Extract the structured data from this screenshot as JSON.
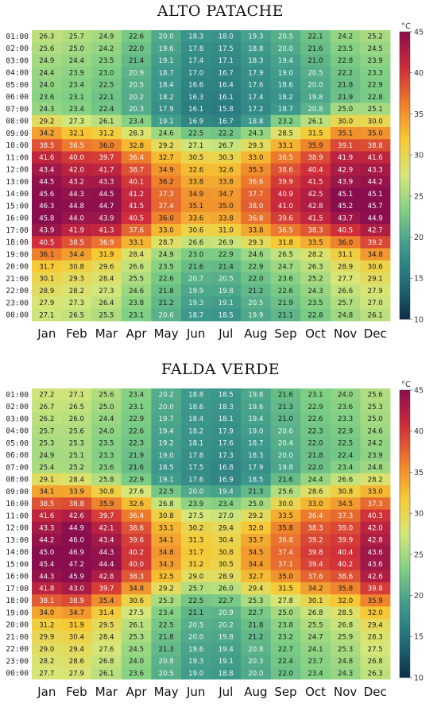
{
  "colors": {
    "scale_stops": [
      "#0b2f4a",
      "#1f6d7a",
      "#3d9a8c",
      "#7fcf85",
      "#d5e77a",
      "#f7c934",
      "#ee7e2c",
      "#cf2c3a",
      "#8a0e4e"
    ]
  },
  "chart_data": [
    {
      "type": "heatmap",
      "title": "ALTO PATACHE",
      "x": [
        "Jan",
        "Feb",
        "Mar",
        "Apr",
        "May",
        "Jun",
        "Jul",
        "Aug",
        "Sep",
        "Oct",
        "Nov",
        "Dec"
      ],
      "y": [
        "01:00",
        "02:00",
        "03:00",
        "04:00",
        "05:00",
        "06:00",
        "07:00",
        "08:00",
        "09:00",
        "10:00",
        "11:00",
        "12:00",
        "13:00",
        "14:00",
        "15:00",
        "16:00",
        "17:00",
        "18:00",
        "19:00",
        "20:00",
        "21:00",
        "22:00",
        "23:00",
        "00:00"
      ],
      "values": [
        [
          26.3,
          25.7,
          24.9,
          22.6,
          20.0,
          18.3,
          18.0,
          19.3,
          20.5,
          22.1,
          24.2,
          25.2
        ],
        [
          25.6,
          25.0,
          24.2,
          22.0,
          19.6,
          17.8,
          17.5,
          18.8,
          20.0,
          21.6,
          23.5,
          24.5
        ],
        [
          24.9,
          24.4,
          23.5,
          21.4,
          19.1,
          17.4,
          17.1,
          18.3,
          19.4,
          21.0,
          22.8,
          23.9
        ],
        [
          24.4,
          23.9,
          23.0,
          20.9,
          18.7,
          17.0,
          16.7,
          17.9,
          19.0,
          20.5,
          22.2,
          23.3
        ],
        [
          24.0,
          23.4,
          22.5,
          20.5,
          18.4,
          16.6,
          16.4,
          17.6,
          18.6,
          20.0,
          21.8,
          22.9
        ],
        [
          23.6,
          23.1,
          22.1,
          20.2,
          18.2,
          16.3,
          16.1,
          17.4,
          18.2,
          19.8,
          21.9,
          22.8
        ],
        [
          24.3,
          23.4,
          22.4,
          20.3,
          17.9,
          16.1,
          15.8,
          17.2,
          18.7,
          20.8,
          25.0,
          25.1
        ],
        [
          29.2,
          27.3,
          26.1,
          23.4,
          19.1,
          16.9,
          16.7,
          18.8,
          23.2,
          26.1,
          30.0,
          30.0
        ],
        [
          34.2,
          32.1,
          31.2,
          28.3,
          24.6,
          22.5,
          22.2,
          24.3,
          28.5,
          31.5,
          35.1,
          35.0
        ],
        [
          38.5,
          36.5,
          36.0,
          32.8,
          29.2,
          27.1,
          26.7,
          29.3,
          33.1,
          35.9,
          39.1,
          38.8
        ],
        [
          41.6,
          40.0,
          39.7,
          36.4,
          32.7,
          30.5,
          30.3,
          33.0,
          36.5,
          38.9,
          41.9,
          41.6
        ],
        [
          43.4,
          42.0,
          41.7,
          38.7,
          34.9,
          32.6,
          32.6,
          35.3,
          38.6,
          40.4,
          42.9,
          43.3
        ],
        [
          44.5,
          43.2,
          43.3,
          40.1,
          36.2,
          33.8,
          33.8,
          36.6,
          39.9,
          41.5,
          43.9,
          44.2
        ],
        [
          45.6,
          44.3,
          44.5,
          41.2,
          37.3,
          34.9,
          34.7,
          37.7,
          40.9,
          42.5,
          45.1,
          45.1
        ],
        [
          46.3,
          44.8,
          44.7,
          41.5,
          37.4,
          35.1,
          35.0,
          38.0,
          41.0,
          42.8,
          45.2,
          45.7
        ],
        [
          45.8,
          44.0,
          43.9,
          40.5,
          36.0,
          33.6,
          33.8,
          36.8,
          39.6,
          41.5,
          43.7,
          44.9
        ],
        [
          43.9,
          41.9,
          41.3,
          37.6,
          33.0,
          30.6,
          31.0,
          33.8,
          36.5,
          38.3,
          40.5,
          42.7
        ],
        [
          40.5,
          38.5,
          36.9,
          33.1,
          28.7,
          26.6,
          26.9,
          29.3,
          31.8,
          33.5,
          36.0,
          39.2
        ],
        [
          36.1,
          34.4,
          31.9,
          28.4,
          24.9,
          23.0,
          22.9,
          24.6,
          26.5,
          28.2,
          31.1,
          34.8
        ],
        [
          31.7,
          30.8,
          29.6,
          26.6,
          23.5,
          21.6,
          21.4,
          22.9,
          24.7,
          26.3,
          28.9,
          30.6
        ],
        [
          30.1,
          29.3,
          28.4,
          25.5,
          22.6,
          20.7,
          20.5,
          22.0,
          23.6,
          25.2,
          27.7,
          29.1
        ],
        [
          28.9,
          28.2,
          27.3,
          24.6,
          21.8,
          19.9,
          19.8,
          21.2,
          22.6,
          24.3,
          26.6,
          27.9
        ],
        [
          27.9,
          27.3,
          26.4,
          23.8,
          21.2,
          19.3,
          19.1,
          20.5,
          21.9,
          23.5,
          25.7,
          27.0
        ],
        [
          27.1,
          26.5,
          25.5,
          23.1,
          20.6,
          18.7,
          18.5,
          19.9,
          21.1,
          22.8,
          24.8,
          26.1
        ]
      ],
      "colorbar": {
        "label": "°C",
        "min": 10,
        "max": 45,
        "ticks": [
          10,
          15,
          20,
          25,
          30,
          35,
          40,
          45
        ]
      }
    },
    {
      "type": "heatmap",
      "title": "FALDA VERDE",
      "x": [
        "Jan",
        "Feb",
        "Mar",
        "Apr",
        "May",
        "Jun",
        "Jul",
        "Aug",
        "Sep",
        "Oct",
        "Nov",
        "Dec"
      ],
      "y": [
        "01:00",
        "02:00",
        "03:00",
        "04:00",
        "05:00",
        "06:00",
        "07:00",
        "08:00",
        "09:00",
        "10:00",
        "11:00",
        "12:00",
        "13:00",
        "14:00",
        "15:00",
        "16:00",
        "17:00",
        "18:00",
        "19:00",
        "20:00",
        "21:00",
        "22:00",
        "23:00",
        "00:00"
      ],
      "values": [
        [
          27.2,
          27.1,
          25.6,
          23.4,
          20.2,
          18.8,
          18.5,
          19.8,
          21.6,
          23.1,
          24.0,
          25.6
        ],
        [
          26.7,
          26.5,
          25.0,
          23.1,
          20.0,
          18.6,
          18.3,
          19.6,
          21.3,
          22.9,
          23.6,
          25.3
        ],
        [
          26.2,
          26.0,
          24.4,
          22.9,
          19.7,
          18.4,
          18.1,
          19.4,
          21.0,
          22.6,
          23.3,
          25.0
        ],
        [
          25.7,
          25.6,
          24.0,
          22.6,
          19.4,
          18.2,
          17.9,
          19.0,
          20.6,
          22.3,
          22.9,
          24.6
        ],
        [
          25.3,
          25.3,
          23.5,
          22.3,
          19.2,
          18.1,
          17.6,
          18.7,
          20.4,
          22.0,
          22.5,
          24.2
        ],
        [
          24.9,
          25.1,
          23.3,
          21.9,
          19.0,
          17.8,
          17.3,
          18.3,
          20.0,
          21.8,
          22.4,
          23.9
        ],
        [
          25.4,
          25.2,
          23.6,
          21.6,
          18.5,
          17.5,
          16.8,
          17.9,
          19.8,
          22.0,
          23.4,
          24.8
        ],
        [
          29.1,
          28.4,
          25.8,
          22.9,
          19.1,
          17.6,
          16.9,
          18.5,
          21.6,
          24.4,
          26.6,
          28.2
        ],
        [
          34.1,
          33.9,
          30.8,
          27.6,
          22.5,
          20.0,
          19.4,
          21.3,
          25.6,
          28.6,
          30.8,
          33.0
        ],
        [
          38.5,
          38.8,
          35.9,
          32.6,
          26.8,
          23.9,
          23.4,
          25.0,
          30.0,
          33.0,
          34.5,
          37.3
        ],
        [
          41.6,
          42.6,
          39.7,
          36.4,
          30.8,
          27.5,
          27.0,
          29.2,
          33.5,
          36.4,
          37.3,
          40.3
        ],
        [
          43.3,
          44.9,
          42.1,
          38.6,
          33.1,
          30.2,
          29.4,
          32.0,
          35.8,
          38.3,
          39.0,
          42.0
        ],
        [
          44.2,
          46.0,
          43.4,
          39.6,
          34.1,
          31.3,
          30.4,
          33.7,
          36.8,
          39.2,
          39.9,
          42.8
        ],
        [
          45.0,
          46.9,
          44.3,
          40.2,
          34.8,
          31.7,
          30.8,
          34.5,
          37.4,
          39.8,
          40.4,
          43.6
        ],
        [
          45.4,
          47.2,
          44.4,
          40.0,
          34.3,
          31.2,
          30.5,
          34.4,
          37.1,
          39.4,
          40.2,
          43.6
        ],
        [
          44.3,
          45.9,
          42.8,
          38.3,
          32.5,
          29.0,
          28.9,
          32.7,
          35.0,
          37.6,
          38.6,
          42.6
        ],
        [
          41.8,
          43.0,
          39.7,
          34.8,
          29.2,
          25.7,
          26.0,
          29.4,
          31.5,
          34.2,
          35.8,
          39.8
        ],
        [
          38.1,
          38.9,
          35.4,
          30.6,
          25.3,
          22.5,
          22.7,
          25.3,
          27.8,
          30.1,
          32.0,
          35.9
        ],
        [
          34.0,
          34.7,
          31.4,
          27.5,
          23.4,
          21.1,
          20.9,
          22.7,
          25.0,
          26.8,
          28.5,
          32.0
        ],
        [
          31.2,
          31.9,
          29.5,
          26.1,
          22.5,
          20.5,
          20.2,
          21.8,
          23.8,
          25.5,
          26.8,
          29.4
        ],
        [
          29.9,
          30.4,
          28.4,
          25.3,
          21.8,
          20.0,
          19.8,
          21.2,
          23.2,
          24.7,
          25.9,
          28.3
        ],
        [
          29.0,
          29.4,
          27.6,
          24.5,
          21.3,
          19.6,
          19.4,
          20.8,
          22.7,
          24.1,
          25.3,
          27.5
        ],
        [
          28.2,
          28.6,
          26.8,
          24.0,
          20.8,
          19.3,
          19.1,
          20.3,
          22.4,
          23.7,
          24.8,
          26.8
        ],
        [
          27.7,
          27.9,
          26.1,
          23.6,
          20.5,
          19.0,
          18.8,
          20.0,
          22.0,
          23.4,
          24.3,
          26.3
        ]
      ],
      "colorbar": {
        "label": "°C",
        "min": 10,
        "max": 45,
        "ticks": [
          10,
          15,
          20,
          25,
          30,
          35,
          40,
          45
        ]
      }
    }
  ]
}
